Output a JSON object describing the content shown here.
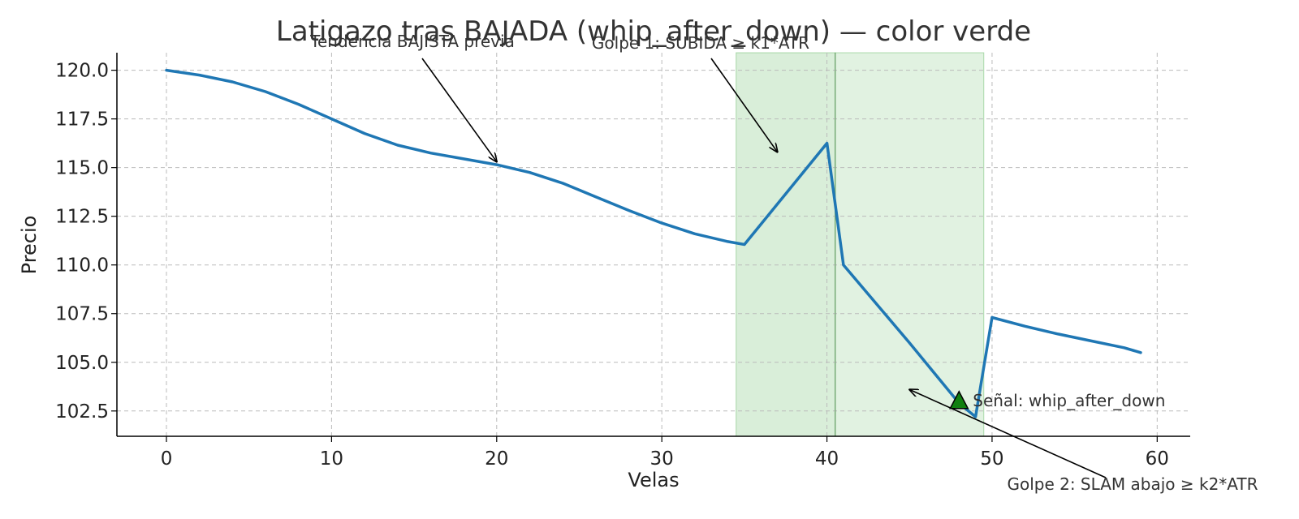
{
  "chart_data": {
    "type": "line",
    "title": "Latigazo tras BAJADA (whip_after_down) — color verde",
    "xlabel": "Velas",
    "ylabel": "Precio",
    "xlim": [
      -3,
      62
    ],
    "ylim": [
      101.2,
      120.9
    ],
    "x_ticks": [
      0,
      10,
      20,
      30,
      40,
      50,
      60
    ],
    "x_tick_labels": [
      "0",
      "10",
      "20",
      "30",
      "40",
      "50",
      "60"
    ],
    "y_ticks": [
      102.5,
      105.0,
      107.5,
      110.0,
      112.5,
      115.0,
      117.5,
      120.0
    ],
    "y_tick_labels": [
      "102.5",
      "105.0",
      "107.5",
      "110.0",
      "112.5",
      "115.0",
      "117.5",
      "120.0"
    ],
    "grid": true,
    "series": [
      {
        "color": "#1f77b4",
        "points": [
          [
            0,
            120.0
          ],
          [
            2,
            119.75
          ],
          [
            4,
            119.4
          ],
          [
            6,
            118.9
          ],
          [
            8,
            118.25
          ],
          [
            10,
            117.5
          ],
          [
            12,
            116.75
          ],
          [
            14,
            116.15
          ],
          [
            16,
            115.75
          ],
          [
            18,
            115.45
          ],
          [
            20,
            115.15
          ],
          [
            22,
            114.75
          ],
          [
            24,
            114.2
          ],
          [
            26,
            113.5
          ],
          [
            28,
            112.8
          ],
          [
            30,
            112.15
          ],
          [
            32,
            111.6
          ],
          [
            34,
            111.2
          ],
          [
            35,
            111.05
          ],
          [
            40,
            116.25
          ],
          [
            41,
            110.0
          ],
          [
            45,
            106.0
          ],
          [
            48,
            102.9
          ],
          [
            49,
            102.2
          ],
          [
            50,
            107.3
          ],
          [
            52,
            106.85
          ],
          [
            54,
            106.45
          ],
          [
            56,
            106.1
          ],
          [
            58,
            105.75
          ],
          [
            59,
            105.5
          ]
        ]
      }
    ],
    "shaded_regions": [
      {
        "x0": 34.5,
        "x1": 40.5,
        "color": "#2ca02c",
        "opacity": 0.18
      },
      {
        "x0": 40.5,
        "x1": 49.5,
        "color": "#2ca02c",
        "opacity": 0.14
      }
    ],
    "vertical_line": {
      "x": 40.5,
      "color": "#6c9c6c"
    },
    "signal_marker": {
      "x": 48,
      "y": 103.0,
      "shape": "triangle-up",
      "color": "#108010",
      "label": "Señal: whip_after_down"
    },
    "annotations": [
      {
        "text": "Tendencia BAJISTA previa",
        "target": [
          20,
          115.3
        ]
      },
      {
        "text": "Golpe 1: SUBIDA ≥ k1*ATR",
        "target": [
          37,
          115.8
        ]
      },
      {
        "text": "Golpe 2: SLAM abajo ≥ k2*ATR",
        "target": [
          45,
          103.6
        ]
      }
    ]
  }
}
